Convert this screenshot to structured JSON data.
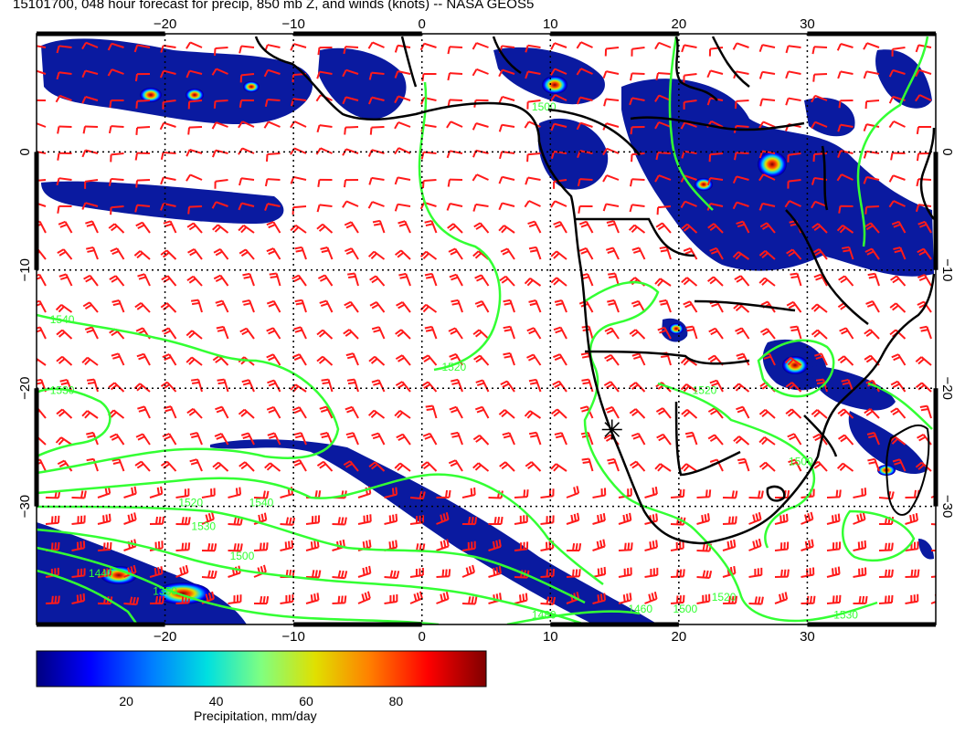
{
  "title": "15101700, 048 hour forecast for precip, 850 mb Z, and winds (knots) -- NASA GEOS5",
  "map": {
    "lon_range": [
      -30,
      40
    ],
    "lat_range": [
      -40,
      10
    ],
    "lon_ticks": [
      {
        "value": -20,
        "label": "−20"
      },
      {
        "value": -10,
        "label": "−10"
      },
      {
        "value": 0,
        "label": "0"
      },
      {
        "value": 10,
        "label": "10"
      },
      {
        "value": 20,
        "label": "20"
      },
      {
        "value": 30,
        "label": "30"
      }
    ],
    "lat_ticks": [
      {
        "value": 0,
        "label": "0"
      },
      {
        "value": -10,
        "label": "−10"
      },
      {
        "value": -20,
        "label": "−20"
      },
      {
        "value": -30,
        "label": "−30"
      }
    ],
    "contour_labels": [
      {
        "text": "1540",
        "lon": -28,
        "lat": -14.5
      },
      {
        "text": "1530",
        "lon": -28,
        "lat": -20.5
      },
      {
        "text": "1520",
        "lon": 2.5,
        "lat": -18.5
      },
      {
        "text": "1500",
        "lon": 9.5,
        "lat": 3.5
      },
      {
        "text": "1520",
        "lon": -18,
        "lat": -30
      },
      {
        "text": "1540",
        "lon": -12.5,
        "lat": -30
      },
      {
        "text": "1530",
        "lon": -17,
        "lat": -32
      },
      {
        "text": "1500",
        "lon": -14,
        "lat": -34.5
      },
      {
        "text": "1520",
        "lon": 22,
        "lat": -20.5
      },
      {
        "text": "1500",
        "lon": 29.5,
        "lat": -26.5
      },
      {
        "text": "1520",
        "lon": 23.5,
        "lat": -38
      },
      {
        "text": "1500",
        "lon": 20.5,
        "lat": -39
      },
      {
        "text": "1530",
        "lon": 33,
        "lat": -39.5
      },
      {
        "text": "1460",
        "lon": 17,
        "lat": -39
      },
      {
        "text": "1480",
        "lon": 9.5,
        "lat": -39.5
      },
      {
        "text": "1440",
        "lon": -25,
        "lat": -36
      },
      {
        "text": "1380",
        "lon": -20,
        "lat": -37.5
      }
    ],
    "station_marker": {
      "lon": 14.8,
      "lat": -23.5,
      "symbol": "asterisk"
    },
    "colors": {
      "contour": "#33ff33",
      "wind_barb": "#ff1a1a",
      "coast": "#000000",
      "grid": "#000000"
    },
    "layers": [
      "precipitation",
      "850 mb geopotential height contours",
      "wind barbs (knots)",
      "coastlines and borders"
    ]
  },
  "colorbar": {
    "title": "Precipitation, mm/day",
    "range": [
      0,
      100
    ],
    "ticks": [
      {
        "value": 20,
        "label": "20"
      },
      {
        "value": 40,
        "label": "40"
      },
      {
        "value": 60,
        "label": "60"
      },
      {
        "value": 80,
        "label": "80"
      }
    ],
    "stops": [
      "#000080",
      "#0000ff",
      "#0080ff",
      "#00e0e0",
      "#80ff80",
      "#e0e000",
      "#ff8000",
      "#ff0000",
      "#800000"
    ]
  }
}
